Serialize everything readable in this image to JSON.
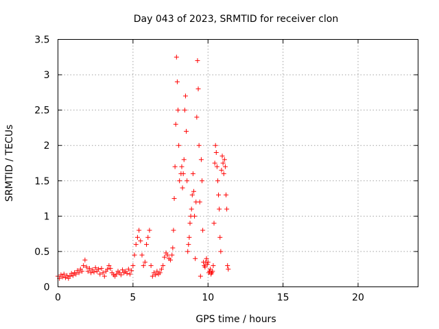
{
  "chart_data": {
    "type": "scatter",
    "title": "Day 043 of 2023, SRMTID for receiver clon",
    "xlabel": "GPS time / hours",
    "ylabel": "SRMTID / TECUs",
    "xlim": [
      0,
      24
    ],
    "ylim": [
      0,
      3.5
    ],
    "xticks": [
      0,
      5,
      10,
      15,
      20
    ],
    "xtick_labels": [
      "0",
      "5",
      "10",
      "15",
      "20"
    ],
    "yticks": [
      0,
      0.5,
      1,
      1.5,
      2,
      2.5,
      3,
      3.5
    ],
    "ytick_labels": [
      "0",
      "0.5",
      "1",
      "1.5",
      "2",
      "2.5",
      "3",
      "3.5"
    ],
    "grid": true,
    "marker": "+",
    "series": [
      {
        "name": "SRMTID",
        "color": "#ff0000",
        "x": [
          0.0,
          0.1,
          0.2,
          0.3,
          0.4,
          0.5,
          0.6,
          0.7,
          0.8,
          0.9,
          1.0,
          1.1,
          1.2,
          1.3,
          1.4,
          1.5,
          1.6,
          1.7,
          1.8,
          1.9,
          2.0,
          2.1,
          2.2,
          2.3,
          2.4,
          2.5,
          2.6,
          2.7,
          2.8,
          2.9,
          3.0,
          3.1,
          3.2,
          3.3,
          3.4,
          3.5,
          3.6,
          3.7,
          3.8,
          3.9,
          4.0,
          4.1,
          4.2,
          4.3,
          4.4,
          4.5,
          4.6,
          4.7,
          4.8,
          4.9,
          5.0,
          5.1,
          5.2,
          5.3,
          5.4,
          5.5,
          5.6,
          5.7,
          5.8,
          5.9,
          6.0,
          6.1,
          6.2,
          6.3,
          6.4,
          6.5,
          6.6,
          6.7,
          6.8,
          6.9,
          7.0,
          7.1,
          7.2,
          7.3,
          7.4,
          7.5,
          7.6,
          7.65,
          7.7,
          7.75,
          7.8,
          7.85,
          7.9,
          7.95,
          8.0,
          8.05,
          8.1,
          8.2,
          8.25,
          8.3,
          8.35,
          8.4,
          8.45,
          8.5,
          8.55,
          8.6,
          8.65,
          8.7,
          8.75,
          8.8,
          8.85,
          8.9,
          8.95,
          9.0,
          9.05,
          9.1,
          9.15,
          9.2,
          9.25,
          9.3,
          9.35,
          9.4,
          9.45,
          9.5,
          9.55,
          9.6,
          9.65,
          9.7,
          9.75,
          9.8,
          9.85,
          9.9,
          9.95,
          10.0,
          10.05,
          10.1,
          10.15,
          10.2,
          10.25,
          10.3,
          10.35,
          10.4,
          10.45,
          10.5,
          10.55,
          10.6,
          10.65,
          10.7,
          10.75,
          10.8,
          10.85,
          10.9,
          10.95,
          11.0,
          11.05,
          11.1,
          11.15,
          11.2,
          11.25,
          11.3,
          11.35
        ],
        "y": [
          0.15,
          0.12,
          0.17,
          0.14,
          0.18,
          0.13,
          0.16,
          0.12,
          0.15,
          0.19,
          0.16,
          0.2,
          0.18,
          0.23,
          0.2,
          0.25,
          0.22,
          0.3,
          0.38,
          0.28,
          0.22,
          0.26,
          0.2,
          0.24,
          0.21,
          0.27,
          0.22,
          0.25,
          0.18,
          0.26,
          0.2,
          0.15,
          0.22,
          0.25,
          0.3,
          0.26,
          0.2,
          0.17,
          0.15,
          0.18,
          0.22,
          0.2,
          0.17,
          0.24,
          0.2,
          0.22,
          0.19,
          0.25,
          0.18,
          0.23,
          0.3,
          0.45,
          0.6,
          0.7,
          0.8,
          0.65,
          0.45,
          0.3,
          0.35,
          0.6,
          0.7,
          0.8,
          0.3,
          0.15,
          0.2,
          0.17,
          0.22,
          0.18,
          0.2,
          0.25,
          0.3,
          0.42,
          0.48,
          0.45,
          0.4,
          0.38,
          0.45,
          0.55,
          0.8,
          1.25,
          1.7,
          2.3,
          3.25,
          2.9,
          2.5,
          2.0,
          1.5,
          1.6,
          1.7,
          1.4,
          1.6,
          1.8,
          2.5,
          2.7,
          2.2,
          1.5,
          0.5,
          0.6,
          0.7,
          0.9,
          1.0,
          1.1,
          1.3,
          1.6,
          1.35,
          1.0,
          0.4,
          1.2,
          2.4,
          3.2,
          2.8,
          2.0,
          1.2,
          0.15,
          1.8,
          1.5,
          0.8,
          0.35,
          0.3,
          0.28,
          0.35,
          0.4,
          0.32,
          0.35,
          0.2,
          0.22,
          0.25,
          0.18,
          0.2,
          0.22,
          0.3,
          0.9,
          1.75,
          2.0,
          1.9,
          1.7,
          1.5,
          1.3,
          1.1,
          0.7,
          0.5,
          1.65,
          1.85,
          1.75,
          1.6,
          1.8,
          1.7,
          1.3,
          1.1,
          0.3,
          0.25
        ]
      }
    ]
  }
}
